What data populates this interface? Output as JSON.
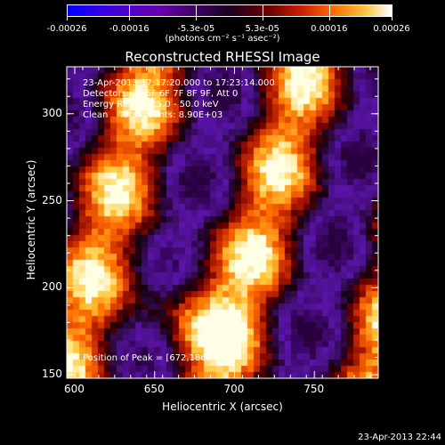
{
  "colorbar": {
    "tick_labels": [
      "-0.00026",
      "-0.00016",
      "-5.3e-05",
      "5.3e-05",
      "0.00016",
      "0.00026"
    ],
    "units_label": "(photons cm⁻² s⁻¹ asec⁻²)",
    "range": [
      -0.00026,
      0.00026
    ]
  },
  "chart_data": {
    "type": "heatmap",
    "title": "Reconstructed RHESSI Image",
    "xlabel": "Heliocentric X (arcsec)",
    "ylabel": "Heliocentric Y (arcsec)",
    "xlim": [
      595,
      790
    ],
    "ylim": [
      148,
      327
    ],
    "x_ticks": [
      600,
      650,
      700,
      750
    ],
    "y_ticks": [
      150,
      200,
      250,
      300
    ],
    "info_lines": [
      "23-Apr-2013 17:17:20.000 to 17:23:14.000",
      "Detectors: 3F 5F 6F 7F 8F 9F, Att 0",
      "Energy Range: 25.0 - 50.0 keV",
      "Clean    Total counts: 8.90E+03"
    ],
    "peak_label": "Position of Peak = [672,186]",
    "peak": [
      672,
      186
    ]
  },
  "timestamp": "23-Apr-2013 22:44"
}
